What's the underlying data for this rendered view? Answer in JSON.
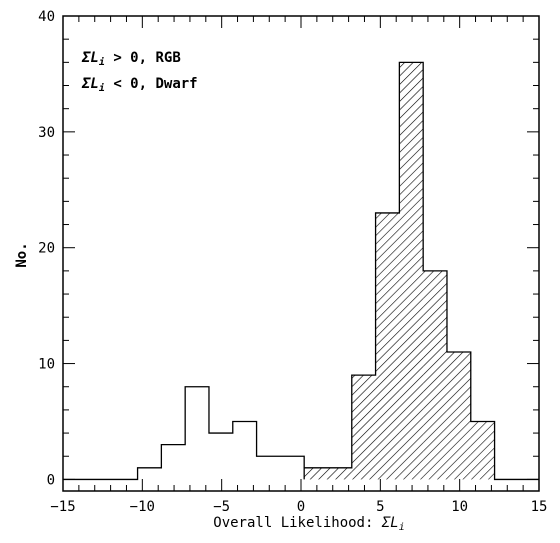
{
  "chart_data": {
    "type": "histogram",
    "xlabel": "Overall Likelihood: ",
    "xlabel_symbol": "ΣL",
    "xlabel_sub": "i",
    "ylabel": "No.",
    "xlim": [
      -15,
      15
    ],
    "ylim": [
      -1,
      40
    ],
    "xticks": [
      -15,
      -10,
      -5,
      0,
      5,
      10,
      15
    ],
    "yticks": [
      0,
      10,
      20,
      30,
      40
    ],
    "xtick_labels": [
      "−15",
      "−10",
      "−5",
      "0",
      "5",
      "10",
      "15"
    ],
    "ytick_labels": [
      "0",
      "10",
      "20",
      "30",
      "40"
    ],
    "annotations": [
      {
        "symbol": "ΣL",
        "sub": "i",
        "text": " > 0,  RGB"
      },
      {
        "symbol": "ΣL",
        "sub": "i",
        "text": " < 0, Dwarf"
      }
    ],
    "series": [
      {
        "name": "",
        "style": "open-step",
        "edges": [
          -15.0,
          -10.3,
          -8.8,
          -7.3,
          -5.8,
          -4.3,
          -2.8,
          -1.3,
          0.2
        ],
        "counts": [
          0,
          1,
          3,
          8,
          4,
          5,
          2,
          2
        ]
      },
      {
        "name": "",
        "style": "hatched",
        "edges": [
          0.2,
          3.2,
          4.7,
          6.2,
          7.7,
          9.2,
          10.7,
          12.2
        ],
        "counts": [
          1,
          9,
          23,
          36,
          18,
          11,
          5
        ]
      }
    ],
    "tail_after": {
      "from": 12.2,
      "to": 15.0,
      "value": 0
    }
  }
}
